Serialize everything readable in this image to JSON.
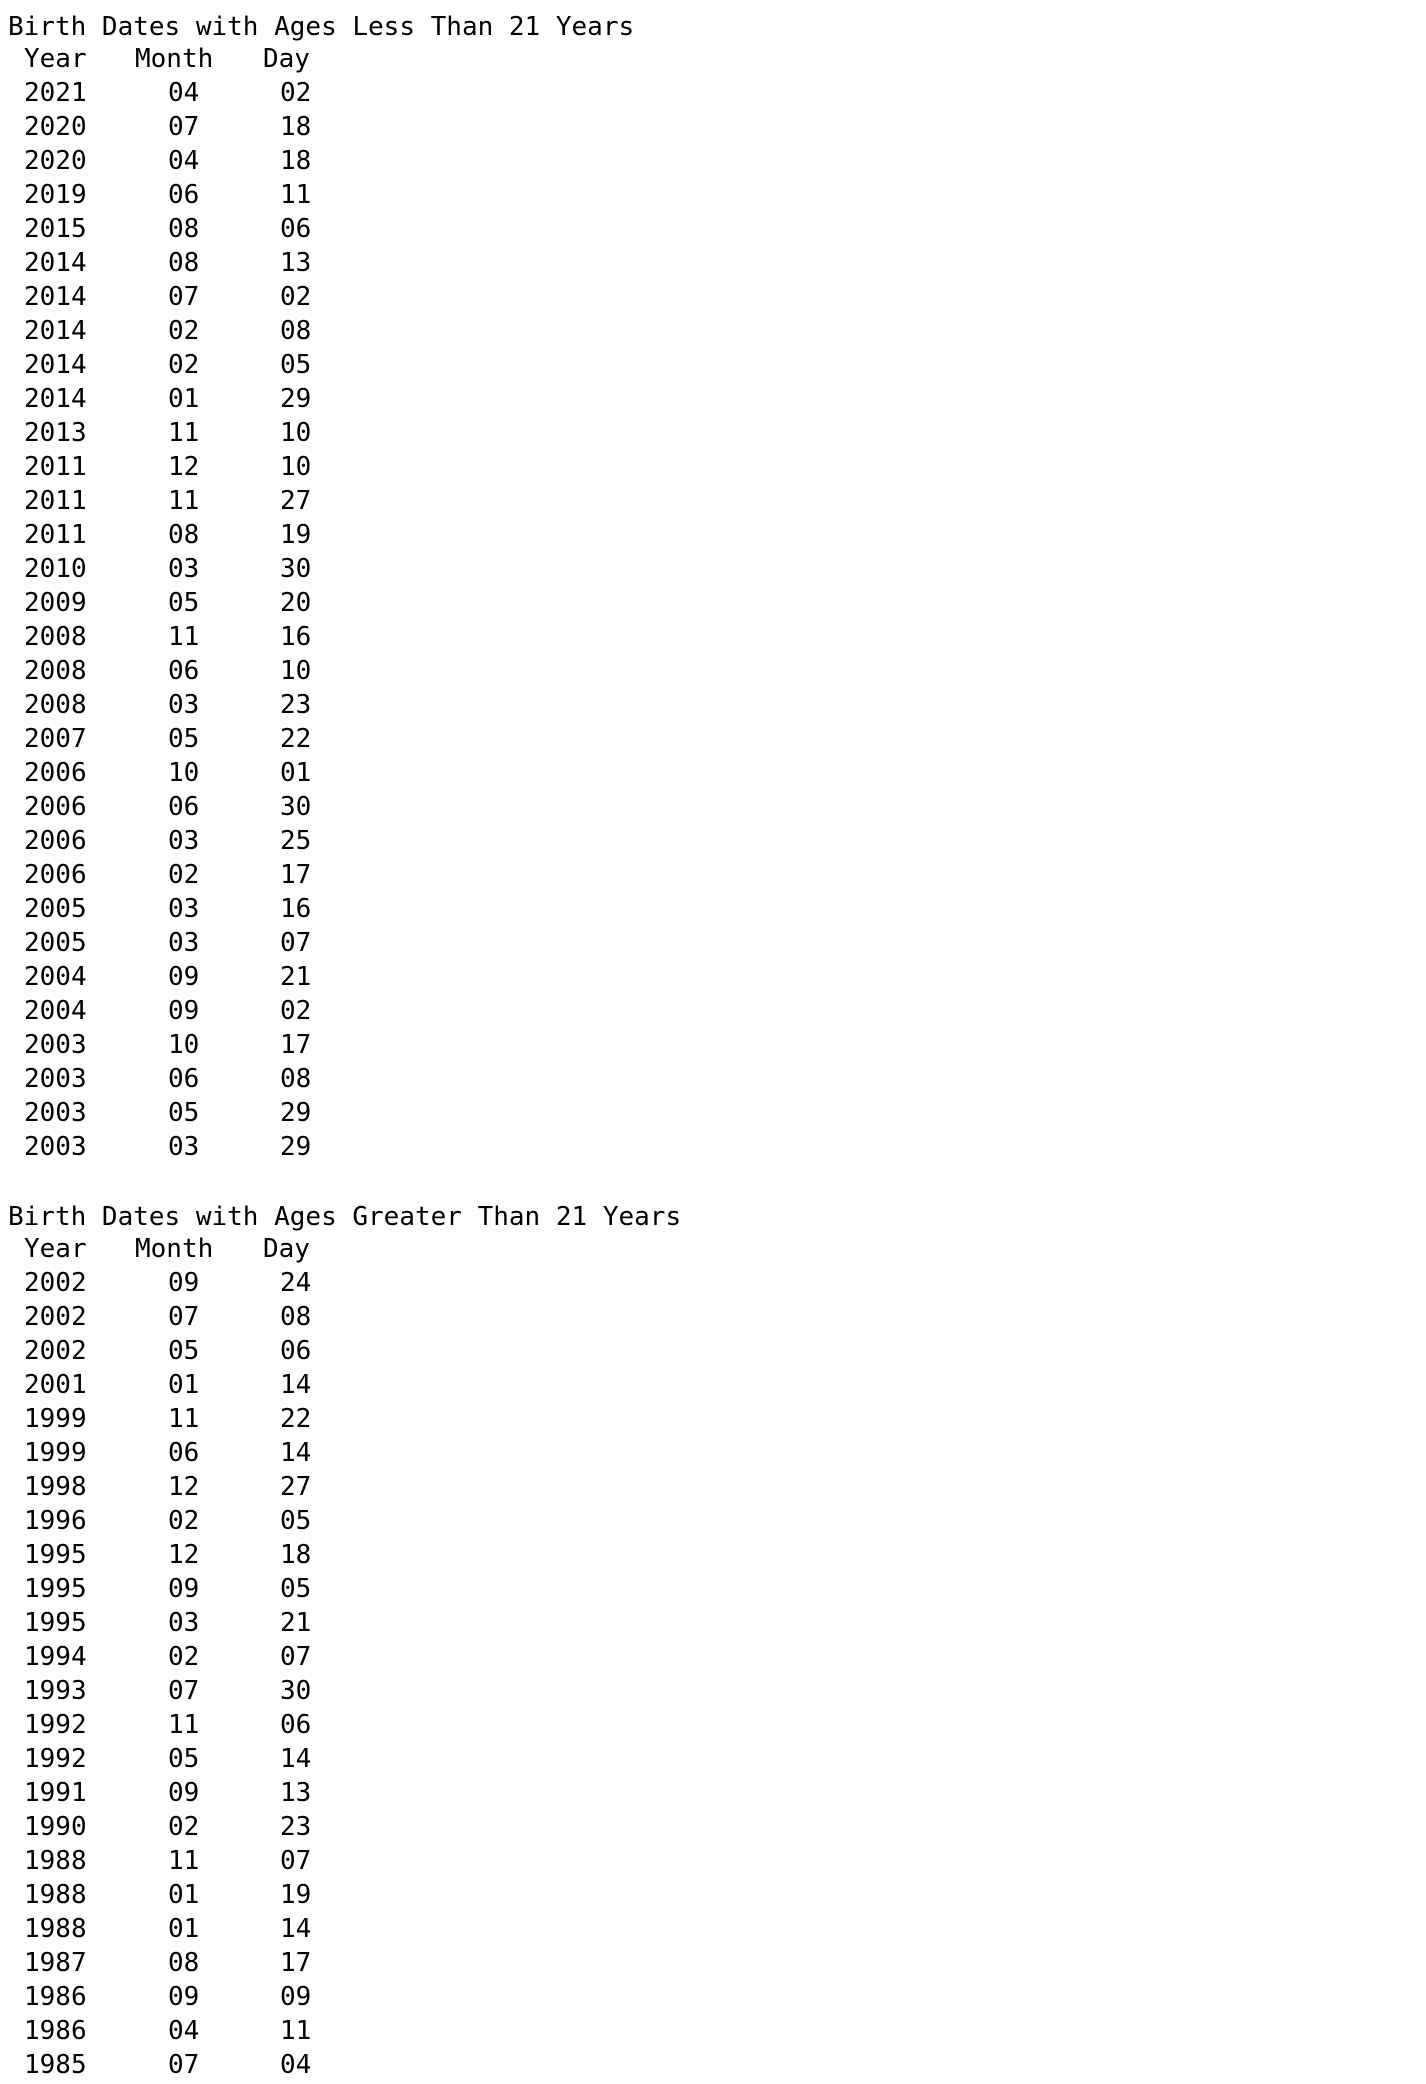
{
  "sections": [
    {
      "title": "Birth Dates with Ages Less Than 21 Years",
      "columns": {
        "year": "Year",
        "month": "Month",
        "day": "Day"
      },
      "rows": [
        [
          "2021",
          "04",
          "02"
        ],
        [
          "2020",
          "07",
          "18"
        ],
        [
          "2020",
          "04",
          "18"
        ],
        [
          "2019",
          "06",
          "11"
        ],
        [
          "2015",
          "08",
          "06"
        ],
        [
          "2014",
          "08",
          "13"
        ],
        [
          "2014",
          "07",
          "02"
        ],
        [
          "2014",
          "02",
          "08"
        ],
        [
          "2014",
          "02",
          "05"
        ],
        [
          "2014",
          "01",
          "29"
        ],
        [
          "2013",
          "11",
          "10"
        ],
        [
          "2011",
          "12",
          "10"
        ],
        [
          "2011",
          "11",
          "27"
        ],
        [
          "2011",
          "08",
          "19"
        ],
        [
          "2010",
          "03",
          "30"
        ],
        [
          "2009",
          "05",
          "20"
        ],
        [
          "2008",
          "11",
          "16"
        ],
        [
          "2008",
          "06",
          "10"
        ],
        [
          "2008",
          "03",
          "23"
        ],
        [
          "2007",
          "05",
          "22"
        ],
        [
          "2006",
          "10",
          "01"
        ],
        [
          "2006",
          "06",
          "30"
        ],
        [
          "2006",
          "03",
          "25"
        ],
        [
          "2006",
          "02",
          "17"
        ],
        [
          "2005",
          "03",
          "16"
        ],
        [
          "2005",
          "03",
          "07"
        ],
        [
          "2004",
          "09",
          "21"
        ],
        [
          "2004",
          "09",
          "02"
        ],
        [
          "2003",
          "10",
          "17"
        ],
        [
          "2003",
          "06",
          "08"
        ],
        [
          "2003",
          "05",
          "29"
        ],
        [
          "2003",
          "03",
          "29"
        ]
      ]
    },
    {
      "title": "Birth Dates with Ages Greater Than 21 Years",
      "columns": {
        "year": "Year",
        "month": "Month",
        "day": "Day"
      },
      "rows": [
        [
          "2002",
          "09",
          "24"
        ],
        [
          "2002",
          "07",
          "08"
        ],
        [
          "2002",
          "05",
          "06"
        ],
        [
          "2001",
          "01",
          "14"
        ],
        [
          "1999",
          "11",
          "22"
        ],
        [
          "1999",
          "06",
          "14"
        ],
        [
          "1998",
          "12",
          "27"
        ],
        [
          "1996",
          "02",
          "05"
        ],
        [
          "1995",
          "12",
          "18"
        ],
        [
          "1995",
          "09",
          "05"
        ],
        [
          "1995",
          "03",
          "21"
        ],
        [
          "1994",
          "02",
          "07"
        ],
        [
          "1993",
          "07",
          "30"
        ],
        [
          "1992",
          "11",
          "06"
        ],
        [
          "1992",
          "05",
          "14"
        ],
        [
          "1991",
          "09",
          "13"
        ],
        [
          "1990",
          "02",
          "23"
        ],
        [
          "1988",
          "11",
          "07"
        ],
        [
          "1988",
          "01",
          "19"
        ],
        [
          "1988",
          "01",
          "14"
        ],
        [
          "1987",
          "08",
          "17"
        ],
        [
          "1986",
          "09",
          "09"
        ],
        [
          "1986",
          "04",
          "11"
        ],
        [
          "1985",
          "07",
          "04"
        ]
      ]
    }
  ]
}
